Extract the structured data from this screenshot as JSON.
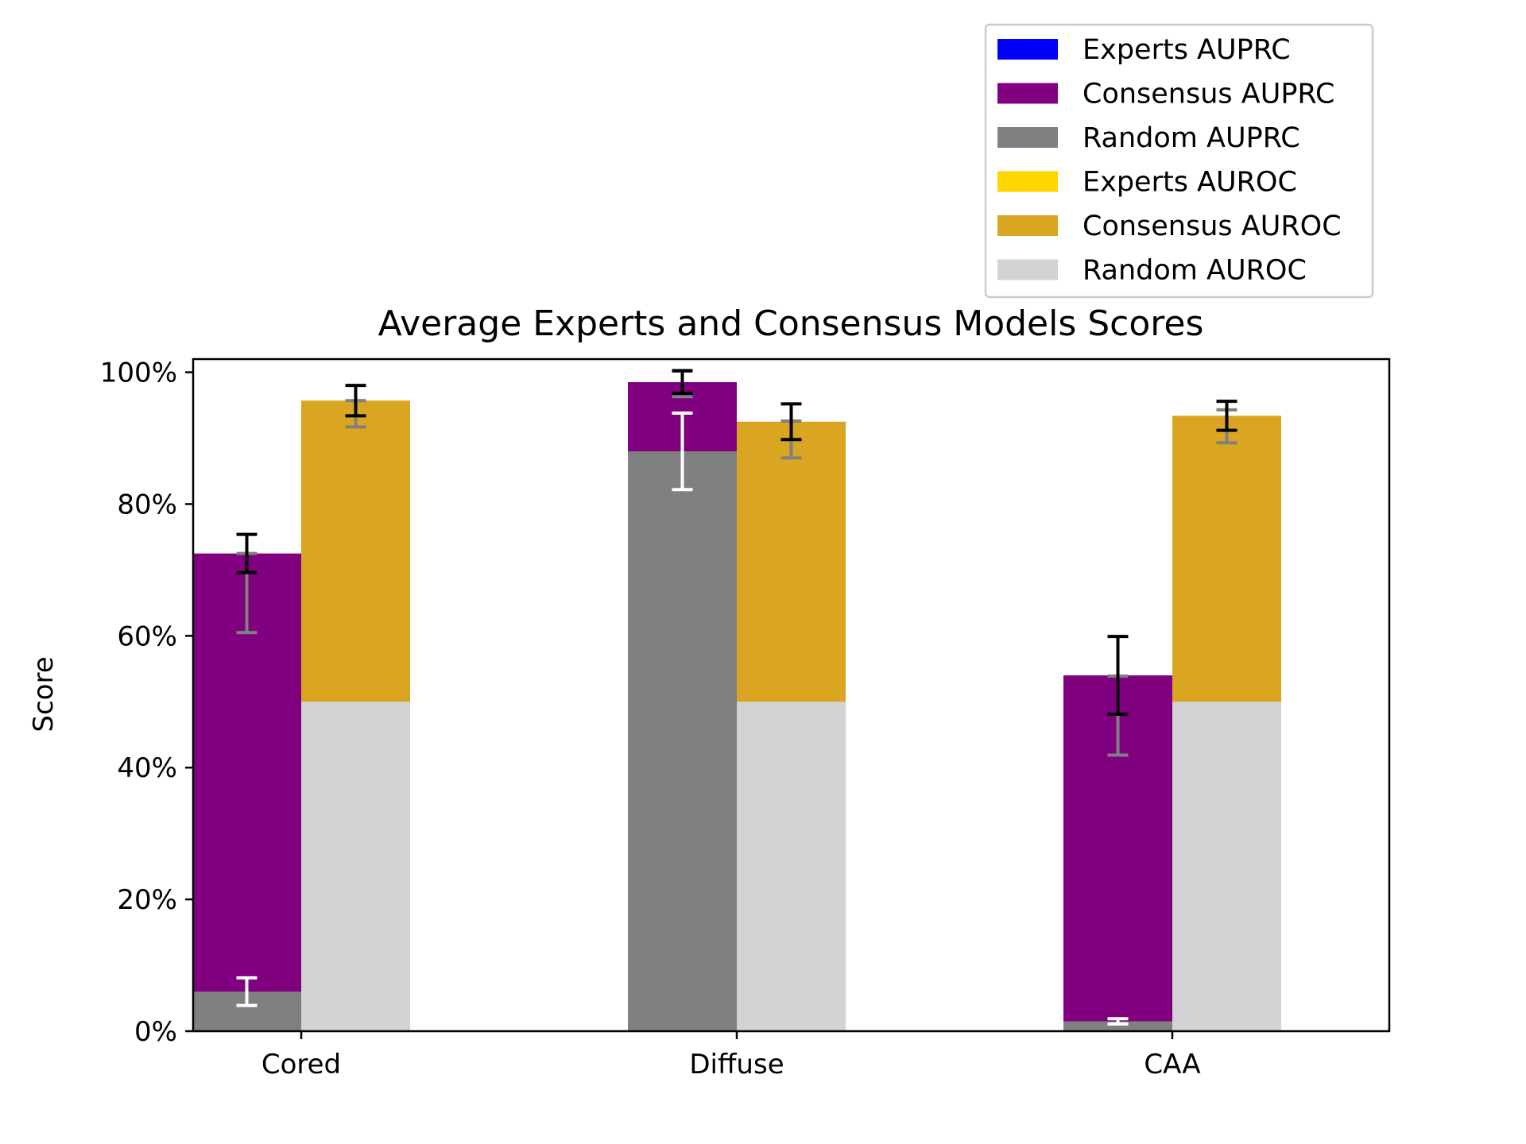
{
  "chart_data": {
    "type": "bar",
    "title": "Average Experts and Consensus Models Scores",
    "xlabel": "",
    "ylabel": "Score",
    "categories": [
      "Cored",
      "Diffuse",
      "CAA"
    ],
    "ylim": [
      0,
      1.02
    ],
    "yticks": [
      0,
      0.2,
      0.4,
      0.6,
      0.8,
      1.0
    ],
    "ytick_labels": [
      "0%",
      "20%",
      "40%",
      "60%",
      "80%",
      "100%"
    ],
    "grid": false,
    "legend_position": "top-right (outside, above plot)",
    "series": [
      {
        "name": "Experts AUPRC",
        "color": "#0000ff",
        "group": "AUPRC",
        "values": [
          0.665,
          0.983,
          0.479
        ],
        "error": [
          0.06,
          0.02,
          0.06
        ],
        "error_color": "#808080"
      },
      {
        "name": "Consensus AUPRC",
        "color": "#800080",
        "group": "AUPRC",
        "values": [
          0.725,
          0.985,
          0.54
        ],
        "error": [
          0.029,
          0.017,
          0.059
        ],
        "error_color": "#000000"
      },
      {
        "name": "Random AUPRC",
        "color": "#808080",
        "group": "AUPRC",
        "values": [
          0.06,
          0.88,
          0.015
        ],
        "error": [
          0.021,
          0.058,
          0.004
        ],
        "error_color": "#ffffff"
      },
      {
        "name": "Experts AUROC",
        "color": "#ffd700",
        "group": "AUROC",
        "values": [
          0.937,
          0.898,
          0.918
        ],
        "error": [
          0.02,
          0.028,
          0.025
        ],
        "error_color": "#808080"
      },
      {
        "name": "Consensus AUROC",
        "color": "#daa520",
        "group": "AUROC",
        "values": [
          0.957,
          0.925,
          0.934
        ],
        "error": [
          0.023,
          0.027,
          0.022
        ],
        "error_color": "#000000"
      },
      {
        "name": "Random AUROC",
        "color": "#d3d3d3",
        "group": "AUROC",
        "values": [
          0.5,
          0.5,
          0.5
        ],
        "error": [
          0,
          0,
          0
        ],
        "error_color": "#d3d3d3"
      }
    ]
  }
}
